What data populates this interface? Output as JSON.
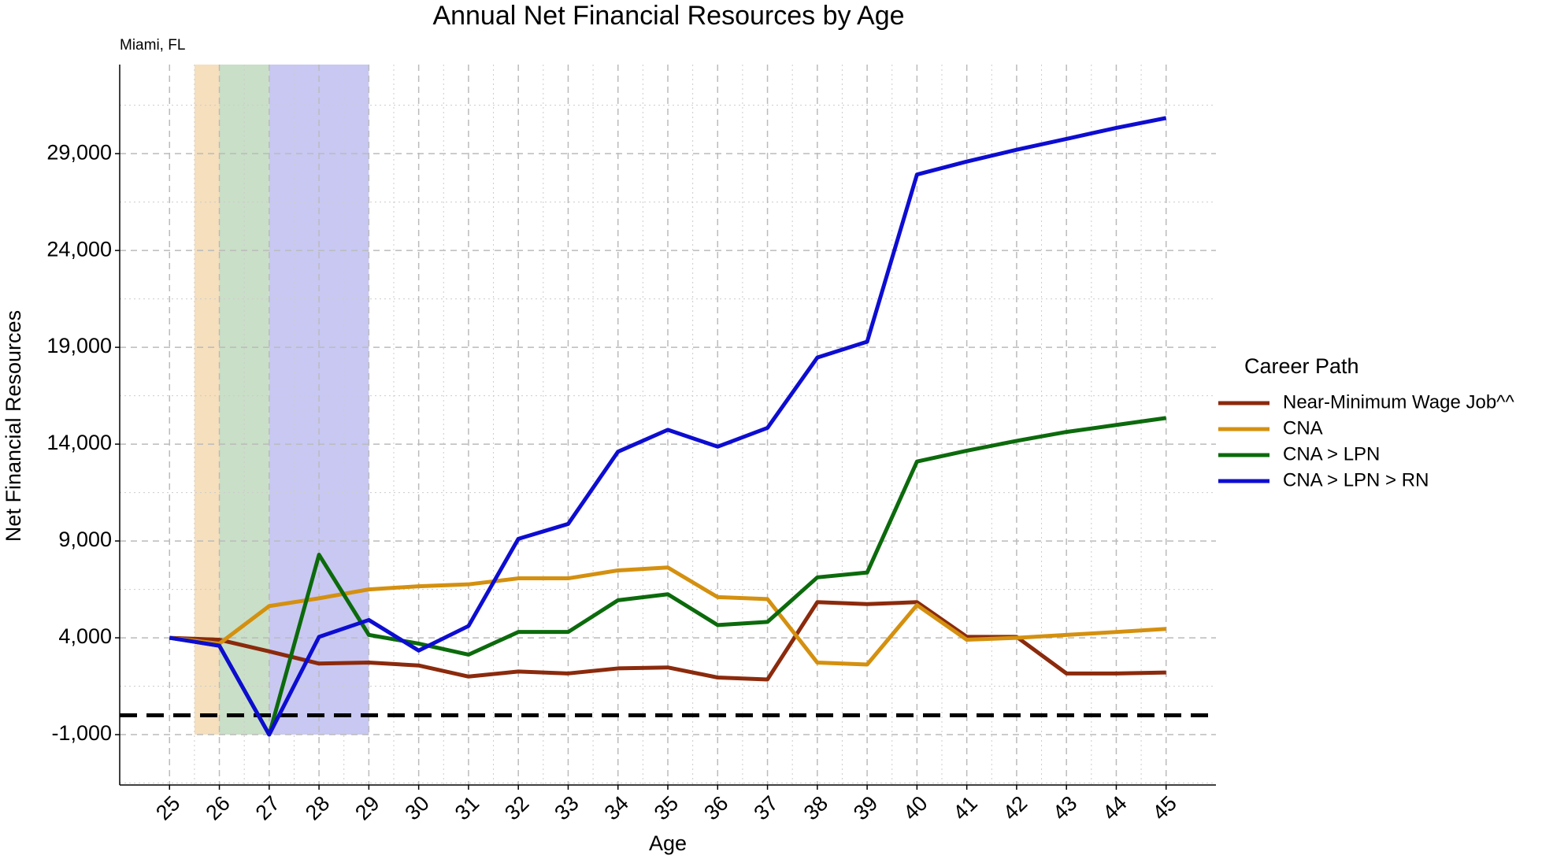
{
  "chart_data": {
    "type": "line",
    "title": "Annual Net Financial Resources by Age",
    "subtitle": "Miami, FL",
    "xlabel": "Age",
    "ylabel": "Net Financial Resources",
    "legend_title": "Career Path",
    "legend_position": "right",
    "grid": true,
    "x": [
      25,
      26,
      27,
      28,
      29,
      30,
      31,
      32,
      33,
      34,
      35,
      36,
      37,
      38,
      39,
      40,
      41,
      42,
      43,
      44,
      45
    ],
    "xlim": [
      24,
      46
    ],
    "xticks": [
      25,
      26,
      27,
      28,
      29,
      30,
      31,
      32,
      33,
      34,
      35,
      36,
      37,
      38,
      39,
      40,
      41,
      42,
      43,
      44,
      45
    ],
    "ylim": [
      -3600,
      33600
    ],
    "yticks": [
      {
        "value": -1000,
        "label": "-1,000"
      },
      {
        "value": 4000,
        "label": "4,000"
      },
      {
        "value": 9000,
        "label": "9,000"
      },
      {
        "value": 14000,
        "label": "14,000"
      },
      {
        "value": 19000,
        "label": "19,000"
      },
      {
        "value": 24000,
        "label": "24,000"
      },
      {
        "value": 29000,
        "label": "29,000"
      }
    ],
    "hline": 0,
    "shading": [
      {
        "x": [
          25.5,
          26
        ],
        "ymin": -1000,
        "color": "#f5dfbd"
      },
      {
        "x": [
          26,
          27
        ],
        "ymin": -1000,
        "color": "#c9dfc7"
      },
      {
        "x": [
          27,
          29
        ],
        "ymin": -1000,
        "color": "#c8c8f3"
      }
    ],
    "series": [
      {
        "name": "Near-Minimum Wage Job^^",
        "color": "#8b2a0c",
        "values": [
          4000,
          3900,
          3300,
          2670,
          2720,
          2570,
          2000,
          2260,
          2160,
          2420,
          2470,
          1950,
          1850,
          5840,
          5740,
          5840,
          4050,
          4050,
          2160,
          2160,
          2210
        ]
      },
      {
        "name": "CNA",
        "color": "#d4900f",
        "values": [
          4000,
          3700,
          5640,
          6040,
          6500,
          6660,
          6760,
          7070,
          7070,
          7480,
          7630,
          6100,
          6000,
          2720,
          2620,
          5690,
          3900,
          4000,
          4150,
          4300,
          4460
        ]
      },
      {
        "name": "CNA > LPN",
        "color": "#0c6a0c",
        "values": [
          4000,
          3590,
          -1000,
          8290,
          4150,
          3700,
          3130,
          4300,
          4300,
          5940,
          6250,
          4660,
          4820,
          7120,
          7370,
          13100,
          13660,
          14170,
          14630,
          14990,
          15350
        ]
      },
      {
        "name": "CNA > LPN > RN",
        "color": "#0d0dd1",
        "values": [
          4000,
          3590,
          -1000,
          4050,
          4920,
          3340,
          4610,
          9110,
          9880,
          13610,
          14740,
          13870,
          14840,
          18470,
          19290,
          27920,
          28590,
          29200,
          29760,
          30330,
          30840
        ]
      }
    ]
  }
}
